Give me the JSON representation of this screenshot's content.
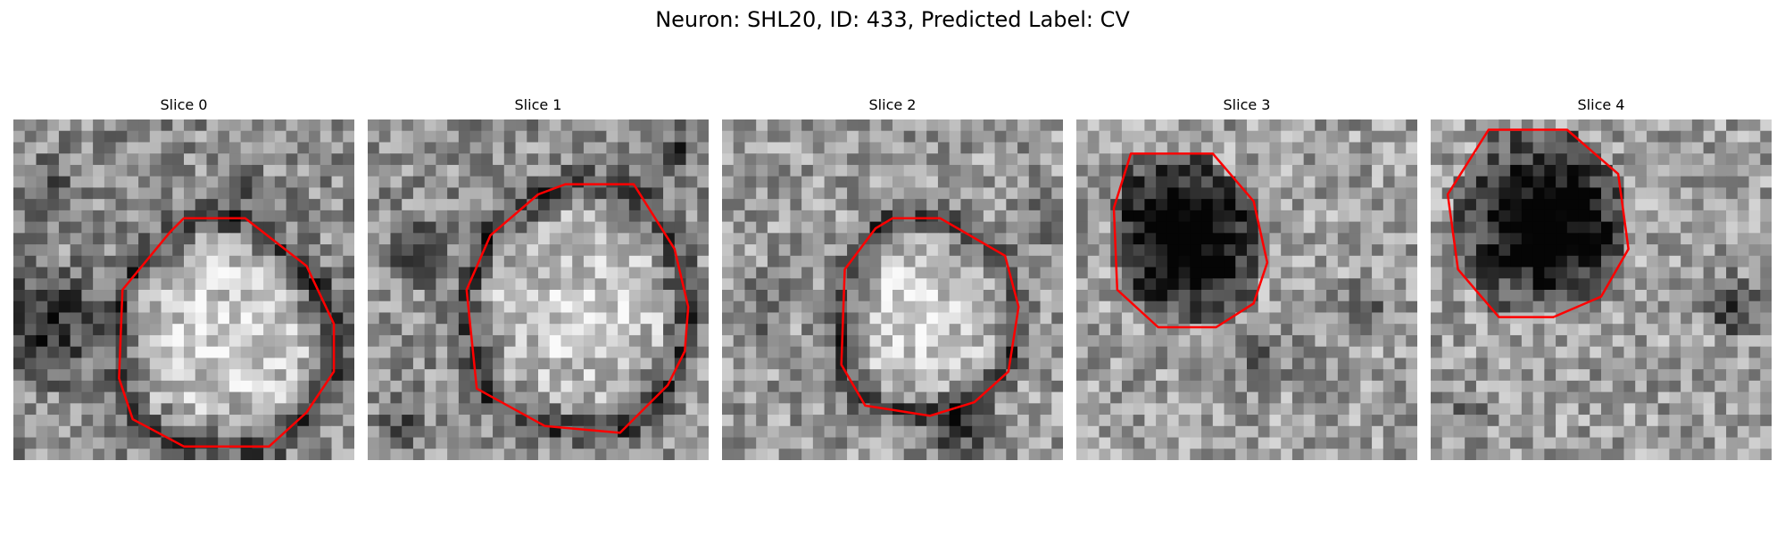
{
  "figure": {
    "title": "Neuron: SHL20, ID: 433, Predicted Label: CV",
    "contour_color": "#ff0000",
    "colormap": "gray",
    "grid_size": 30,
    "panels": [
      {
        "label": "Slice 0",
        "base_level": 0.55,
        "contour": [
          [
            0.5,
            0.29
          ],
          [
            0.68,
            0.29
          ],
          [
            0.86,
            0.43
          ],
          [
            0.94,
            0.6
          ],
          [
            0.94,
            0.74
          ],
          [
            0.86,
            0.86
          ],
          [
            0.75,
            0.96
          ],
          [
            0.5,
            0.96
          ],
          [
            0.35,
            0.88
          ],
          [
            0.31,
            0.76
          ],
          [
            0.32,
            0.5
          ],
          [
            0.46,
            0.33
          ]
        ],
        "dark": [
          [
            0.62,
            0.62,
            0.37,
            0.15
          ],
          [
            0.1,
            0.6,
            0.22,
            -0.4
          ],
          [
            0.67,
            0.17,
            0.07,
            -0.35
          ],
          [
            0.1,
            0.2,
            0.12,
            -0.15
          ],
          [
            0.9,
            0.5,
            0.12,
            -0.15
          ]
        ]
      },
      {
        "label": "Slice 1",
        "base_level": 0.56,
        "contour": [
          [
            0.58,
            0.19
          ],
          [
            0.78,
            0.19
          ],
          [
            0.9,
            0.38
          ],
          [
            0.94,
            0.55
          ],
          [
            0.93,
            0.68
          ],
          [
            0.88,
            0.78
          ],
          [
            0.74,
            0.92
          ],
          [
            0.52,
            0.9
          ],
          [
            0.32,
            0.79
          ],
          [
            0.29,
            0.5
          ],
          [
            0.36,
            0.34
          ],
          [
            0.5,
            0.22
          ]
        ],
        "dark": [
          [
            0.6,
            0.56,
            0.33,
            0.12
          ],
          [
            0.15,
            0.4,
            0.12,
            -0.35
          ],
          [
            0.92,
            0.08,
            0.1,
            -0.25
          ],
          [
            0.1,
            0.9,
            0.1,
            -0.2
          ]
        ]
      },
      {
        "label": "Slice 2",
        "base_level": 0.6,
        "contour": [
          [
            0.5,
            0.29
          ],
          [
            0.64,
            0.29
          ],
          [
            0.83,
            0.4
          ],
          [
            0.87,
            0.55
          ],
          [
            0.84,
            0.74
          ],
          [
            0.74,
            0.83
          ],
          [
            0.61,
            0.87
          ],
          [
            0.42,
            0.84
          ],
          [
            0.35,
            0.72
          ],
          [
            0.36,
            0.44
          ],
          [
            0.45,
            0.32
          ]
        ],
        "dark": [
          [
            0.6,
            0.58,
            0.28,
            0.1
          ],
          [
            0.7,
            0.92,
            0.12,
            -0.35
          ],
          [
            0.12,
            0.55,
            0.12,
            -0.2
          ],
          [
            0.95,
            0.3,
            0.1,
            -0.2
          ]
        ]
      },
      {
        "label": "Slice 3",
        "base_level": 0.62,
        "contour": [
          [
            0.16,
            0.1
          ],
          [
            0.4,
            0.1
          ],
          [
            0.52,
            0.24
          ],
          [
            0.56,
            0.42
          ],
          [
            0.52,
            0.54
          ],
          [
            0.41,
            0.61
          ],
          [
            0.24,
            0.61
          ],
          [
            0.12,
            0.5
          ],
          [
            0.11,
            0.26
          ]
        ],
        "dark": [
          [
            0.32,
            0.34,
            0.25,
            -0.55
          ],
          [
            0.85,
            0.55,
            0.12,
            -0.25
          ],
          [
            0.55,
            0.7,
            0.14,
            -0.2
          ]
        ]
      },
      {
        "label": "Slice 4",
        "base_level": 0.62,
        "contour": [
          [
            0.17,
            0.03
          ],
          [
            0.4,
            0.03
          ],
          [
            0.55,
            0.16
          ],
          [
            0.58,
            0.38
          ],
          [
            0.5,
            0.52
          ],
          [
            0.36,
            0.58
          ],
          [
            0.2,
            0.58
          ],
          [
            0.08,
            0.44
          ],
          [
            0.05,
            0.22
          ]
        ],
        "dark": [
          [
            0.34,
            0.3,
            0.25,
            -0.55
          ],
          [
            0.88,
            0.55,
            0.12,
            -0.4
          ],
          [
            0.1,
            0.85,
            0.1,
            -0.15
          ]
        ]
      }
    ]
  }
}
